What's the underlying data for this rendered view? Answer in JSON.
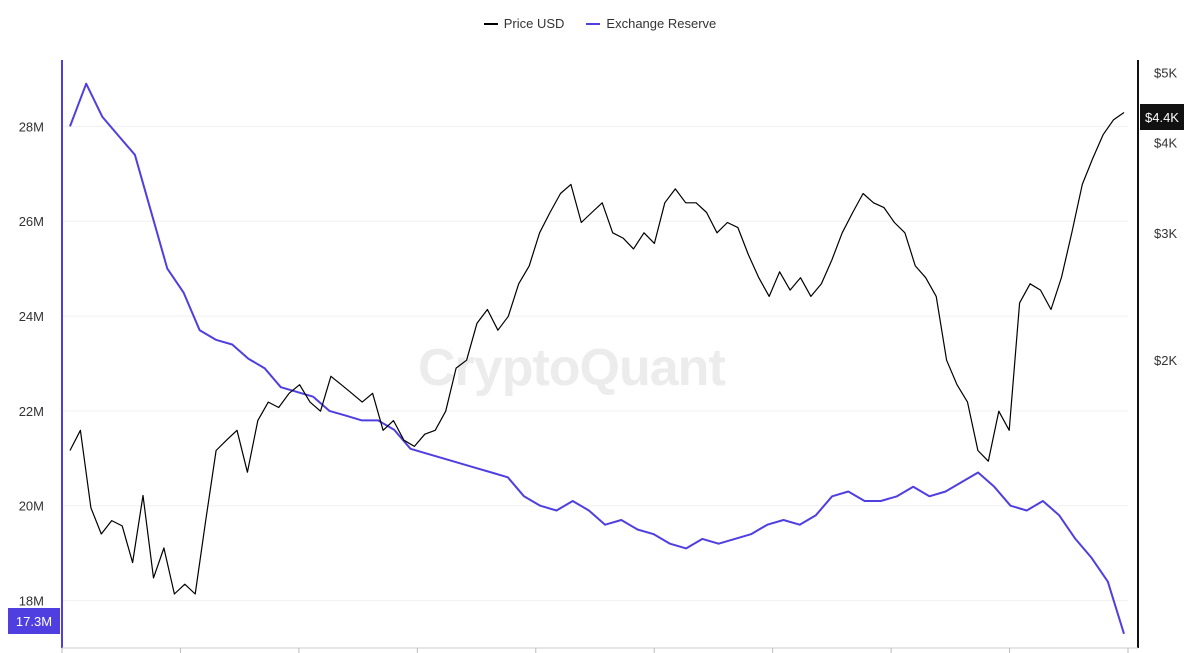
{
  "chart_data": {
    "type": "line",
    "colors": {
      "price": "#000000",
      "reserve": "#4f3fe0"
    },
    "legend_position": "top-center",
    "grid": true,
    "series": [
      {
        "name": "Price USD",
        "axis": "right",
        "scale": "log",
        "values": [
          1500,
          1600,
          1250,
          1150,
          1200,
          1180,
          1050,
          1300,
          1000,
          1100,
          950,
          980,
          950,
          1200,
          1500,
          1550,
          1600,
          1400,
          1650,
          1750,
          1720,
          1800,
          1850,
          1750,
          1700,
          1900,
          1850,
          1800,
          1750,
          1800,
          1600,
          1650,
          1550,
          1520,
          1580,
          1600,
          1700,
          1950,
          2000,
          2250,
          2350,
          2200,
          2300,
          2550,
          2700,
          3000,
          3200,
          3400,
          3500,
          3100,
          3200,
          3300,
          3000,
          2950,
          2850,
          3000,
          2900,
          3300,
          3450,
          3300,
          3300,
          3200,
          3000,
          3100,
          3050,
          2800,
          2600,
          2450,
          2650,
          2500,
          2600,
          2450,
          2550,
          2750,
          3000,
          3200,
          3400,
          3300,
          3250,
          3100,
          3000,
          2700,
          2600,
          2450,
          2000,
          1850,
          1750,
          1500,
          1450,
          1700,
          1600,
          2400,
          2550,
          2500,
          2350,
          2600,
          3000,
          3500,
          3800,
          4100,
          4300,
          4400
        ],
        "labels": {
          "current": "$4.4K"
        }
      },
      {
        "name": "Exchange Reserve",
        "axis": "left",
        "values": [
          28.0,
          28.9,
          28.2,
          27.8,
          27.4,
          26.2,
          25.0,
          24.5,
          23.7,
          23.5,
          23.4,
          23.1,
          22.9,
          22.5,
          22.4,
          22.3,
          22.0,
          21.9,
          21.8,
          21.8,
          21.6,
          21.2,
          21.1,
          21.0,
          20.9,
          20.8,
          20.7,
          20.6,
          20.2,
          20.0,
          19.9,
          20.1,
          19.9,
          19.6,
          19.7,
          19.5,
          19.4,
          19.2,
          19.1,
          19.3,
          19.2,
          19.3,
          19.4,
          19.6,
          19.7,
          19.6,
          19.8,
          20.2,
          20.3,
          20.1,
          20.1,
          20.2,
          20.4,
          20.2,
          20.3,
          20.5,
          20.7,
          20.4,
          20.0,
          19.9,
          20.1,
          19.8,
          19.3,
          18.9,
          18.4,
          17.3
        ],
        "labels": {
          "current": "17.3M"
        }
      }
    ],
    "left_axis": {
      "ticks": [
        "18M",
        "20M",
        "22M",
        "24M",
        "26M",
        "28M"
      ],
      "tick_values": [
        18,
        20,
        22,
        24,
        26,
        28
      ],
      "ylim": [
        17.0,
        29.4
      ]
    },
    "right_axis": {
      "ticks": [
        "$2K",
        "$3K",
        "$4K",
        "$5K"
      ],
      "tick_values": [
        2000,
        3000,
        4000,
        5000
      ],
      "ylim": [
        800,
        5200
      ]
    },
    "watermark": "CryptoQuant"
  }
}
